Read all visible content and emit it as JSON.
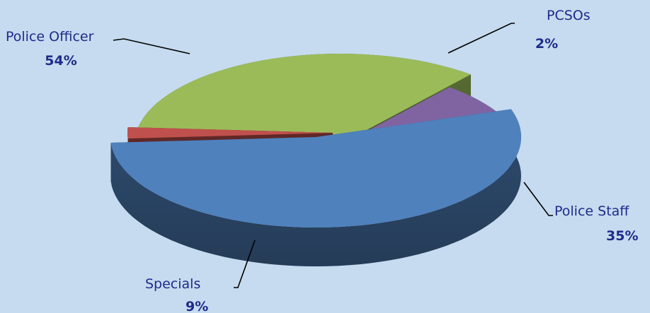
{
  "chart_data": {
    "type": "pie",
    "style": "3d-exploded",
    "title": "",
    "slices": [
      {
        "label": "Police Officer",
        "value": 54,
        "pct_label": "54%",
        "color": "#4f81bd"
      },
      {
        "label": "PCSOs",
        "value": 2,
        "pct_label": "2%",
        "color": "#c0504d"
      },
      {
        "label": "Police Staff",
        "value": 35,
        "pct_label": "35%",
        "color": "#9bbb59"
      },
      {
        "label": "Specials",
        "value": 9,
        "pct_label": "9%",
        "color": "#8064a2"
      }
    ],
    "background": "#c6dbef",
    "label_color": "#1f2a8a"
  }
}
